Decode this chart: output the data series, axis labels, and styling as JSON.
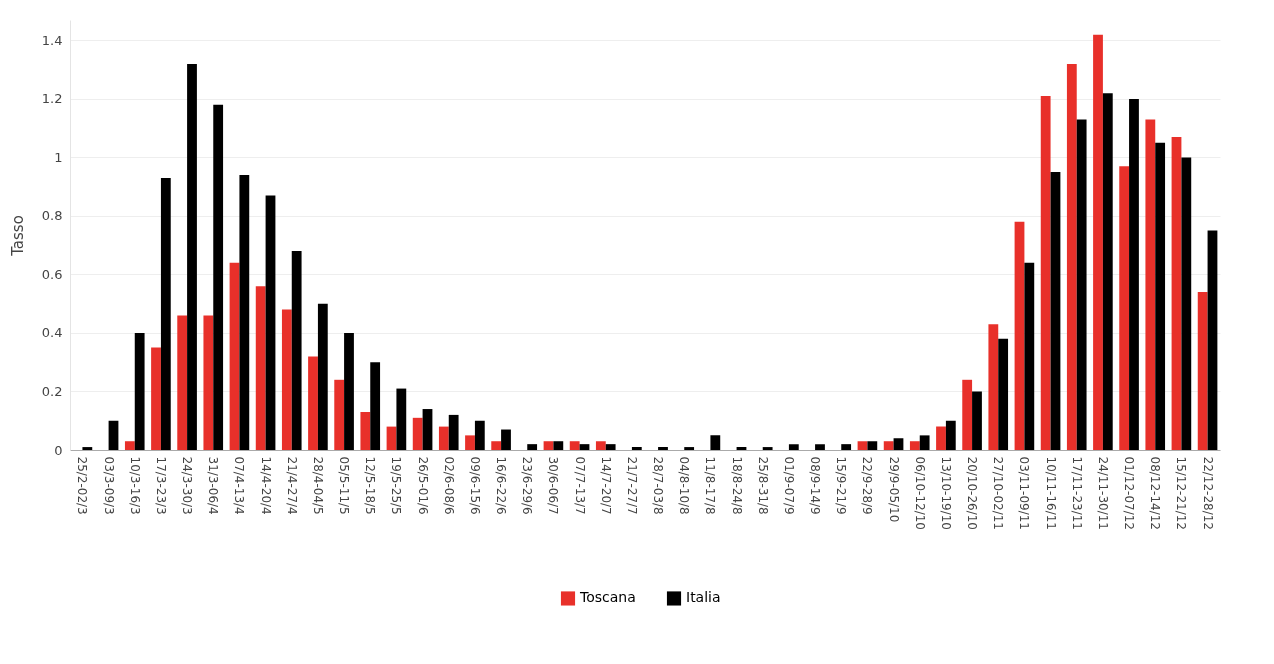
{
  "chart_data": {
    "type": "bar",
    "ylabel": "Tasso",
    "categories": [
      "25/2-02/3",
      "03/3-09/3",
      "10/3-16/3",
      "17/3-23/3",
      "24/3-30/3",
      "31/3-06/4",
      "07/4-13/4",
      "14/4-20/4",
      "21/4-27/4",
      "28/4-04/5",
      "05/5-11/5",
      "12/5-18/5",
      "19/5-25/5",
      "26/5-01/6",
      "02/6-08/6",
      "09/6-15/6",
      "16/6-22/6",
      "23/6-29/6",
      "30/6-06/7",
      "07/7-13/7",
      "14/7-20/7",
      "21/7-27/7",
      "28/7-03/8",
      "04/8-10/8",
      "11/8-17/8",
      "18/8-24/8",
      "25/8-31/8",
      "01/9-07/9",
      "08/9-14/9",
      "15/9-21/9",
      "22/9-28/9",
      "29/9-05/10",
      "06/10-12/10",
      "13/10-19/10",
      "20/10-26/10",
      "27/10-02/11",
      "03/11-09/11",
      "10/11-16/11",
      "17/11-23/11",
      "24/11-30/11",
      "01/12-07/12",
      "08/12-14/12",
      "15/12-21/12",
      "22/12-28/12"
    ],
    "series": [
      {
        "name": "Toscana",
        "color": "#e8302a",
        "values": [
          0,
          0,
          0.03,
          0.35,
          0.46,
          0.46,
          0.64,
          0.56,
          0.48,
          0.32,
          0.24,
          0.13,
          0.08,
          0.11,
          0.08,
          0.05,
          0.03,
          0,
          0.03,
          0.03,
          0.03,
          0,
          0,
          0,
          0,
          0,
          0,
          0,
          0,
          0,
          0.03,
          0.03,
          0.03,
          0.08,
          0.24,
          0.43,
          0.78,
          1.21,
          1.32,
          1.42,
          0.97,
          1.13,
          1.07,
          0.54
        ]
      },
      {
        "name": "Italia",
        "color": "#000000",
        "values": [
          0.01,
          0.1,
          0.4,
          0.93,
          1.32,
          1.18,
          0.94,
          0.87,
          0.68,
          0.5,
          0.4,
          0.3,
          0.21,
          0.14,
          0.12,
          0.1,
          0.07,
          0.02,
          0.03,
          0.02,
          0.02,
          0.01,
          0.01,
          0.01,
          0.05,
          0.01,
          0.01,
          0.02,
          0.02,
          0.02,
          0.03,
          0.04,
          0.05,
          0.1,
          0.2,
          0.38,
          0.64,
          0.95,
          1.13,
          1.22,
          1.2,
          1.05,
          1,
          0.75
        ]
      }
    ],
    "ylim": [
      0,
      1.47
    ],
    "yticks": [
      0,
      0.2,
      0.4,
      0.6,
      0.8,
      1,
      1.2,
      1.4
    ],
    "grid": "y",
    "legend": "bottom"
  }
}
